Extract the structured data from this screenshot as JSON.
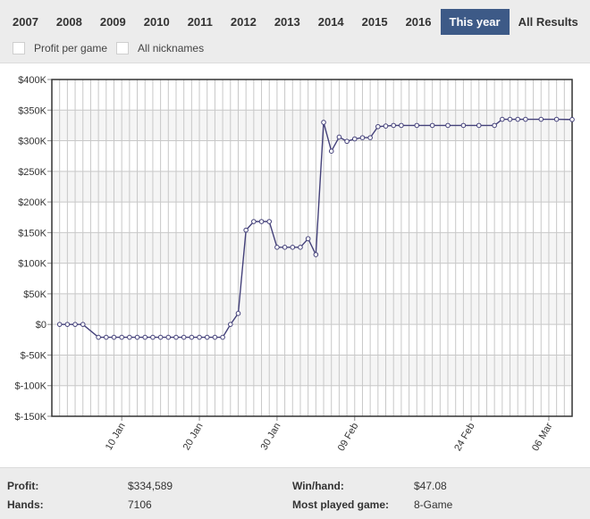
{
  "year_tabs": [
    "2007",
    "2008",
    "2009",
    "2010",
    "2011",
    "2012",
    "2013",
    "2014",
    "2015",
    "2016",
    "This year",
    "All Results"
  ],
  "active_tab": "This year",
  "filters": {
    "profit_per_game": "Profit per game",
    "all_nicknames": "All nicknames"
  },
  "colors": {
    "line": "#44417a",
    "active_tab": "#3d5a87"
  },
  "chart_data": {
    "type": "line",
    "title": "",
    "xlabel": "",
    "ylabel": "",
    "ylim": [
      -150000,
      400000
    ],
    "x_range": [
      "2017-01-01",
      "2017-03-09"
    ],
    "grid": true,
    "yticks": [
      {
        "value": 400000,
        "label": "$400K"
      },
      {
        "value": 350000,
        "label": "$350K"
      },
      {
        "value": 300000,
        "label": "$300K"
      },
      {
        "value": 250000,
        "label": "$250K"
      },
      {
        "value": 200000,
        "label": "$200K"
      },
      {
        "value": 150000,
        "label": "$150K"
      },
      {
        "value": 100000,
        "label": "$100K"
      },
      {
        "value": 50000,
        "label": "$50K"
      },
      {
        "value": 0,
        "label": "$0"
      },
      {
        "value": -50000,
        "label": "$-50K"
      },
      {
        "value": -100000,
        "label": "$-100K"
      },
      {
        "value": -150000,
        "label": "$-150K"
      }
    ],
    "xticks": [
      {
        "date": "2017-01-10",
        "label": "10 Jan"
      },
      {
        "date": "2017-01-20",
        "label": "20 Jan"
      },
      {
        "date": "2017-01-30",
        "label": "30 Jan"
      },
      {
        "date": "2017-02-09",
        "label": "09 Feb"
      },
      {
        "date": "2017-02-24",
        "label": "24 Feb"
      },
      {
        "date": "2017-03-06",
        "label": "06 Mar"
      }
    ],
    "points": [
      {
        "x": "2017-01-02",
        "y": 0
      },
      {
        "x": "2017-01-03",
        "y": 0
      },
      {
        "x": "2017-01-04",
        "y": 0
      },
      {
        "x": "2017-01-05",
        "y": 0
      },
      {
        "x": "2017-01-07",
        "y": -21000
      },
      {
        "x": "2017-01-08",
        "y": -21000
      },
      {
        "x": "2017-01-09",
        "y": -21000
      },
      {
        "x": "2017-01-10",
        "y": -21000
      },
      {
        "x": "2017-01-11",
        "y": -21000
      },
      {
        "x": "2017-01-12",
        "y": -21000
      },
      {
        "x": "2017-01-13",
        "y": -21000
      },
      {
        "x": "2017-01-14",
        "y": -21000
      },
      {
        "x": "2017-01-15",
        "y": -21000
      },
      {
        "x": "2017-01-16",
        "y": -21000
      },
      {
        "x": "2017-01-17",
        "y": -21000
      },
      {
        "x": "2017-01-18",
        "y": -21000
      },
      {
        "x": "2017-01-19",
        "y": -21000
      },
      {
        "x": "2017-01-20",
        "y": -21000
      },
      {
        "x": "2017-01-21",
        "y": -21000
      },
      {
        "x": "2017-01-22",
        "y": -21000
      },
      {
        "x": "2017-01-23",
        "y": -21000
      },
      {
        "x": "2017-01-24",
        "y": 0
      },
      {
        "x": "2017-01-25",
        "y": 18000
      },
      {
        "x": "2017-01-26",
        "y": 154000
      },
      {
        "x": "2017-01-27",
        "y": 168000
      },
      {
        "x": "2017-01-28",
        "y": 168000
      },
      {
        "x": "2017-01-29",
        "y": 168000
      },
      {
        "x": "2017-01-30",
        "y": 126000
      },
      {
        "x": "2017-01-31",
        "y": 126000
      },
      {
        "x": "2017-02-01",
        "y": 126000
      },
      {
        "x": "2017-02-02",
        "y": 126000
      },
      {
        "x": "2017-02-03",
        "y": 140000
      },
      {
        "x": "2017-02-04",
        "y": 114000
      },
      {
        "x": "2017-02-05",
        "y": 330000
      },
      {
        "x": "2017-02-06",
        "y": 283000
      },
      {
        "x": "2017-02-07",
        "y": 306000
      },
      {
        "x": "2017-02-08",
        "y": 299000
      },
      {
        "x": "2017-02-09",
        "y": 303000
      },
      {
        "x": "2017-02-10",
        "y": 305000
      },
      {
        "x": "2017-02-11",
        "y": 305000
      },
      {
        "x": "2017-02-12",
        "y": 323000
      },
      {
        "x": "2017-02-13",
        "y": 324000
      },
      {
        "x": "2017-02-14",
        "y": 325000
      },
      {
        "x": "2017-02-15",
        "y": 325000
      },
      {
        "x": "2017-02-17",
        "y": 325000
      },
      {
        "x": "2017-02-19",
        "y": 325000
      },
      {
        "x": "2017-02-21",
        "y": 325000
      },
      {
        "x": "2017-02-23",
        "y": 325000
      },
      {
        "x": "2017-02-25",
        "y": 325000
      },
      {
        "x": "2017-02-27",
        "y": 325000
      },
      {
        "x": "2017-02-28",
        "y": 335000
      },
      {
        "x": "2017-03-01",
        "y": 335000
      },
      {
        "x": "2017-03-02",
        "y": 335000
      },
      {
        "x": "2017-03-03",
        "y": 335000
      },
      {
        "x": "2017-03-05",
        "y": 335000
      },
      {
        "x": "2017-03-07",
        "y": 335000
      },
      {
        "x": "2017-03-09",
        "y": 334589
      }
    ]
  },
  "stats": {
    "profit_label": "Profit:",
    "profit_value": "$334,589",
    "hands_label": "Hands:",
    "hands_value": "7106",
    "winhand_label": "Win/hand:",
    "winhand_value": "$47.08",
    "most_played_label": "Most played game:",
    "most_played_value": "8-Game"
  }
}
